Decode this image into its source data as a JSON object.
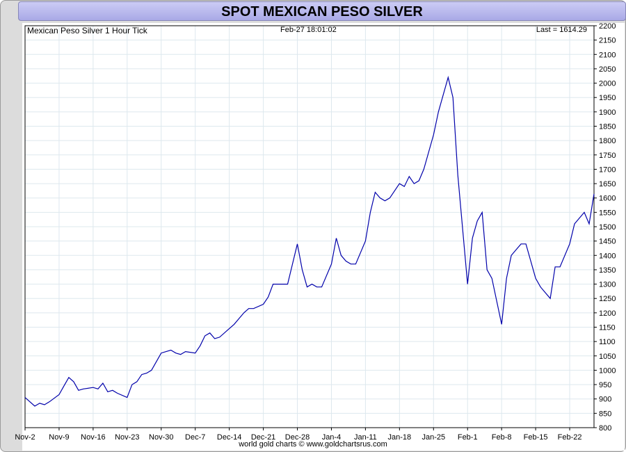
{
  "page": {
    "title": "SPOT MEXICAN PESO SILVER",
    "footer": "world gold charts © www.goldchartsrus.com"
  },
  "chart_data": {
    "type": "line",
    "title": "SPOT MEXICAN PESO SILVER",
    "subtitle": "Mexican Peso Silver 1 Hour Tick",
    "timestamp": "Feb-27  18:01:02",
    "last_label": "Last = 1614.29",
    "xlabel": "",
    "ylabel": "",
    "ylim": [
      800,
      2200
    ],
    "y_ticks": [
      800,
      850,
      900,
      950,
      1000,
      1050,
      1100,
      1150,
      1200,
      1250,
      1300,
      1350,
      1400,
      1450,
      1500,
      1550,
      1600,
      1650,
      1700,
      1750,
      1800,
      1850,
      1900,
      1950,
      2000,
      2050,
      2100,
      2150,
      2200
    ],
    "x_tick_labels": [
      "Nov-2",
      "Nov-9",
      "Nov-16",
      "Nov-23",
      "Nov-30",
      "Dec-7",
      "Dec-14",
      "Dec-21",
      "Dec-28",
      "Jan-4",
      "Jan-11",
      "Jan-18",
      "Jan-25",
      "Feb-1",
      "Feb-8",
      "Feb-15",
      "Feb-22"
    ],
    "x_tick_dates": [
      "2020-11-02",
      "2020-11-09",
      "2020-11-16",
      "2020-11-23",
      "2020-11-30",
      "2020-12-07",
      "2020-12-14",
      "2020-12-21",
      "2020-12-28",
      "2021-01-04",
      "2021-01-11",
      "2021-01-18",
      "2021-01-25",
      "2021-02-01",
      "2021-02-08",
      "2021-02-15",
      "2021-02-22"
    ],
    "xlim": [
      "2020-11-02",
      "2021-02-27"
    ],
    "grid": true,
    "y_axis_side": "right",
    "line_color": "#0000aa",
    "grid_color": "#dde8ee",
    "series": [
      {
        "x": [
          "2020-11-02",
          "2020-11-03",
          "2020-11-04",
          "2020-11-05",
          "2020-11-06",
          "2020-11-07",
          "2020-11-09",
          "2020-11-10",
          "2020-11-11",
          "2020-11-12",
          "2020-11-13",
          "2020-11-14",
          "2020-11-16",
          "2020-11-17",
          "2020-11-18",
          "2020-11-19",
          "2020-11-20",
          "2020-11-21",
          "2020-11-23",
          "2020-11-24",
          "2020-11-25",
          "2020-11-26",
          "2020-11-27",
          "2020-11-28",
          "2020-11-30",
          "2020-12-01",
          "2020-12-02",
          "2020-12-03",
          "2020-12-04",
          "2020-12-05",
          "2020-12-07",
          "2020-12-08",
          "2020-12-09",
          "2020-12-10",
          "2020-12-11",
          "2020-12-12",
          "2020-12-14",
          "2020-12-15",
          "2020-12-16",
          "2020-12-17",
          "2020-12-18",
          "2020-12-19",
          "2020-12-21",
          "2020-12-22",
          "2020-12-23",
          "2020-12-24",
          "2020-12-25",
          "2020-12-26",
          "2020-12-28",
          "2020-12-29",
          "2020-12-30",
          "2020-12-31",
          "2021-01-01",
          "2021-01-02",
          "2021-01-04",
          "2021-01-05",
          "2021-01-06",
          "2021-01-07",
          "2021-01-08",
          "2021-01-09",
          "2021-01-11",
          "2021-01-12",
          "2021-01-13",
          "2021-01-14",
          "2021-01-15",
          "2021-01-16",
          "2021-01-18",
          "2021-01-19",
          "2021-01-20",
          "2021-01-21",
          "2021-01-22",
          "2021-01-23",
          "2021-01-25",
          "2021-01-26",
          "2021-01-27",
          "2021-01-28",
          "2021-01-29",
          "2021-01-30",
          "2021-02-01",
          "2021-02-02",
          "2021-02-03",
          "2021-02-04",
          "2021-02-05",
          "2021-02-06",
          "2021-02-08",
          "2021-02-09",
          "2021-02-10",
          "2021-02-11",
          "2021-02-12",
          "2021-02-13",
          "2021-02-15",
          "2021-02-16",
          "2021-02-17",
          "2021-02-18",
          "2021-02-19",
          "2021-02-20",
          "2021-02-22",
          "2021-02-23",
          "2021-02-24",
          "2021-02-25",
          "2021-02-26",
          "2021-02-27"
        ],
        "y": [
          905,
          890,
          875,
          885,
          880,
          890,
          915,
          945,
          975,
          960,
          930,
          935,
          940,
          935,
          955,
          925,
          930,
          920,
          905,
          950,
          960,
          985,
          990,
          1000,
          1060,
          1065,
          1070,
          1060,
          1055,
          1065,
          1060,
          1085,
          1120,
          1130,
          1110,
          1115,
          1145,
          1160,
          1180,
          1200,
          1215,
          1215,
          1230,
          1255,
          1300,
          1300,
          1300,
          1300,
          1440,
          1350,
          1290,
          1300,
          1290,
          1290,
          1370,
          1460,
          1400,
          1380,
          1370,
          1370,
          1450,
          1550,
          1620,
          1600,
          1590,
          1600,
          1650,
          1640,
          1675,
          1650,
          1660,
          1700,
          1820,
          1900,
          1960,
          2020,
          1950,
          1680,
          1300,
          1460,
          1520,
          1550,
          1350,
          1320,
          1160,
          1320,
          1400,
          1420,
          1440,
          1440,
          1320,
          1290,
          1270,
          1250,
          1360,
          1360,
          1440,
          1510,
          1530,
          1550,
          1510,
          1614
        ]
      }
    ]
  }
}
